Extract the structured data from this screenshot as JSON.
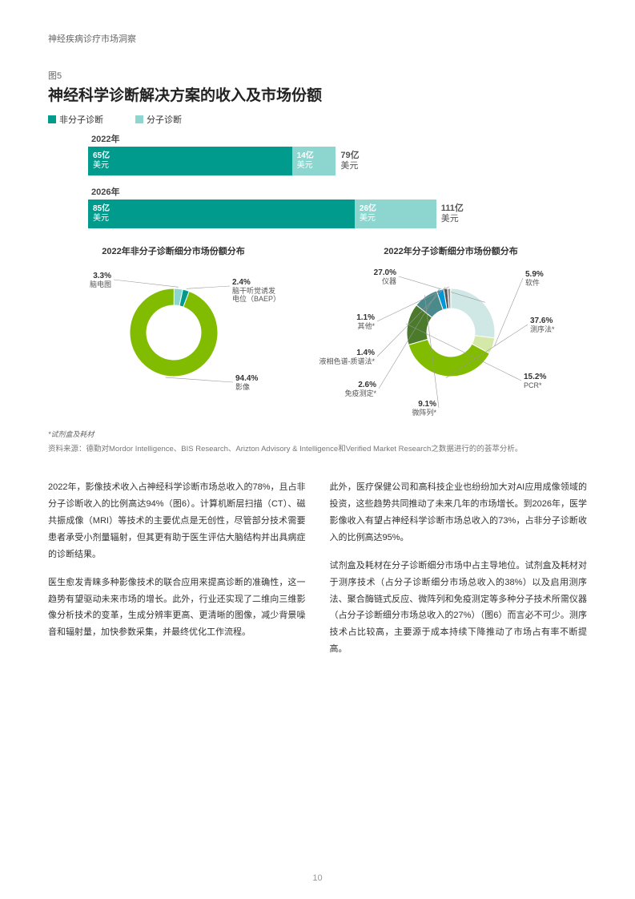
{
  "header": "神经疾病诊疗市场洞察",
  "figure": {
    "label": "图5",
    "title": "神经科学诊断解决方案的收入及市场份额",
    "legend": [
      {
        "label": "非分子诊断",
        "color": "#009b8c"
      },
      {
        "label": "分子诊断",
        "color": "#8dd6cf"
      }
    ],
    "bar_chart": {
      "max_total": 120,
      "unit": [
        "亿",
        "美元"
      ],
      "years": [
        {
          "year": "2022年",
          "segs": [
            {
              "val": 65,
              "color": "#009b8c"
            },
            {
              "val": 14,
              "color": "#8dd6cf"
            }
          ],
          "total": 79
        },
        {
          "year": "2026年",
          "segs": [
            {
              "val": 85,
              "color": "#009b8c"
            },
            {
              "val": 26,
              "color": "#8dd6cf"
            }
          ],
          "total": 111
        }
      ]
    },
    "donut1": {
      "title": "2022年非分子诊断细分市场份额分布",
      "slices": [
        {
          "pct": 3.3,
          "label": "脑电图",
          "color": "#8dd6cf"
        },
        {
          "pct": 2.4,
          "label": "脑干听觉诱发\n电位（BAEP）",
          "color": "#009b8c"
        },
        {
          "pct": 94.4,
          "label": "影像",
          "color": "#82bc00"
        }
      ]
    },
    "donut2": {
      "title": "2022年分子诊断细分市场份额分布",
      "slices": [
        {
          "pct": 27.0,
          "label": "仪器",
          "color": "#cfe8e6"
        },
        {
          "pct": 5.9,
          "label": "软件",
          "color": "#d4e8a8"
        },
        {
          "pct": 37.6,
          "label": "测序法*",
          "color": "#82bc00"
        },
        {
          "pct": 15.2,
          "label": "PCR*",
          "color": "#4a7a2a"
        },
        {
          "pct": 9.1,
          "label": "微阵列*",
          "color": "#4a8a8a"
        },
        {
          "pct": 2.6,
          "label": "免疫测定*",
          "color": "#0097d6"
        },
        {
          "pct": 1.4,
          "label": "液相色谱-质谱法*",
          "color": "#555555"
        },
        {
          "pct": 1.1,
          "label": "其他*",
          "color": "#999999"
        }
      ]
    },
    "note": "*试剂盒及耗材",
    "source": "资料来源：德勤对Mordor Intelligence、BIS Research、Arizton Advisory & Intelligence和Verified Market Research之数据进行的的荟萃分析。"
  },
  "body": {
    "col1": [
      "2022年，影像技术收入占神经科学诊断市场总收入的78%，且占非分子诊断收入的比例高达94%（图6）。计算机断层扫描（CT）、磁共振成像（MRI）等技术的主要优点是无创性，尽管部分技术需要患者承受小剂量辐射，但其更有助于医生评估大脑结构并出具病症的诊断结果。",
      "医生愈发青睐多种影像技术的联合应用来提高诊断的准确性，这一趋势有望驱动未来市场的增长。此外，行业还实现了二维向三维影像分析技术的变革，生成分辨率更高、更清晰的图像，减少背景噪音和辐射量，加快参数采集，并最终优化工作流程。"
    ],
    "col2": [
      "此外，医疗保健公司和高科技企业也纷纷加大对AI应用成像领域的投资，这些趋势共同推动了未来几年的市场增长。到2026年，医学影像收入有望占神经科学诊断市场总收入的73%，占非分子诊断收入的比例高达95%。",
      "试剂盒及耗材在分子诊断细分市场中占主导地位。试剂盒及耗材对于测序技术（占分子诊断细分市场总收入的38%）以及启用测序法、聚合酶链式反应、微阵列和免疫测定等多种分子技术所需仪器（占分子诊断细分市场总收入的27%）（图6）而言必不可少。测序技术占比较高，主要源于成本持续下降推动了市场占有率不断提高。"
    ]
  },
  "page_num": "10"
}
